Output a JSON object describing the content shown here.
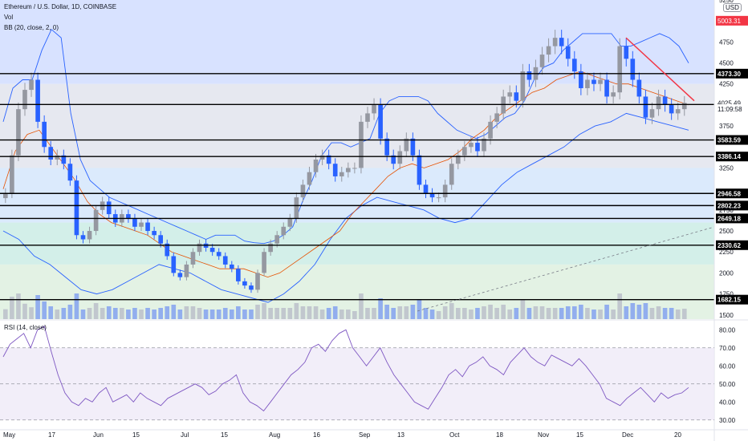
{
  "legend": {
    "title": "Ethereum / U.S. Dollar, 1D, COINBASE",
    "vol": "Vol",
    "bb": "BB (20, close, 2, 0)",
    "rsi": "RSI (14, close)"
  },
  "currency": "USD",
  "colors": {
    "up": "#9598a1",
    "down": "#2962ff",
    "bb_band": "#2962ff",
    "bb_basis": "#e65100",
    "rsi_line": "#7e57c2",
    "trendline": "#f23645",
    "level": "#000000"
  },
  "chart_data": [
    {
      "type": "candlestick",
      "title": "Ethereum / U.S. Dollar, 1D, COINBASE",
      "ylim": [
        1450,
        5250
      ],
      "y_ticks": [
        1500,
        1750,
        2000,
        2250,
        2500,
        2750,
        3250,
        3750,
        4000,
        4250,
        4500,
        4750,
        5250
      ],
      "x_ticks": [
        "May",
        "17",
        "Jun",
        "15",
        "Jul",
        "15",
        "Aug",
        "16",
        "Sep",
        "13",
        "Oct",
        "18",
        "Nov",
        "15",
        "Dec",
        "20"
      ],
      "horizontal_levels": [
        4373.3,
        4005.7,
        3583.59,
        3386.14,
        2946.58,
        2802.23,
        2649.18,
        2330.62,
        1682.15
      ],
      "price_labels": [
        {
          "text": "5003.31",
          "value": 5003.31,
          "style": "highlight"
        },
        {
          "text": "4025.49",
          "value": 4025.49,
          "style": "current"
        },
        {
          "text": "11:09:58",
          "value": 3950,
          "style": "countdown"
        }
      ],
      "zones": [
        {
          "from": 4250,
          "to": 5250,
          "color": "#d8e2ff"
        },
        {
          "from": 3250,
          "to": 4250,
          "color": "#e6e8f0"
        },
        {
          "from": 2600,
          "to": 3250,
          "color": "#dbeafc"
        },
        {
          "from": 2100,
          "to": 2600,
          "color": "#d3efe9"
        },
        {
          "from": 1450,
          "to": 2100,
          "color": "#e3f2e4"
        }
      ],
      "series": [
        {
          "name": "ETH close",
          "values": [
            2950,
            3400,
            3950,
            4180,
            4300,
            3800,
            3500,
            3350,
            3400,
            3300,
            3100,
            2450,
            2400,
            2500,
            2750,
            2850,
            2700,
            2600,
            2700,
            2650,
            2550,
            2600,
            2500,
            2450,
            2350,
            2200,
            2000,
            1950,
            2100,
            2250,
            2350,
            2300,
            2250,
            2200,
            2100,
            2050,
            1900,
            1850,
            1800,
            2000,
            2250,
            2350,
            2450,
            2550,
            2650,
            2900,
            3050,
            3200,
            3350,
            3400,
            3300,
            3150,
            3200,
            3250,
            3250,
            3800,
            3900,
            4000,
            3600,
            3400,
            3300,
            3450,
            3600,
            3400,
            3050,
            2950,
            2900,
            2900,
            3050,
            3300,
            3400,
            3500,
            3550,
            3450,
            3600,
            3800,
            3900,
            4100,
            4150,
            4050,
            4400,
            4300,
            4450,
            4600,
            4700,
            4800,
            4700,
            4550,
            4400,
            4200,
            4300,
            4250,
            4300,
            4100,
            4150,
            4700,
            4550,
            4300,
            4100,
            3850,
            3950,
            4100,
            4000,
            3900,
            3950,
            4025
          ]
        },
        {
          "name": "BB upper",
          "values": [
            3800,
            4200,
            4300,
            4300,
            4650,
            4900,
            4800,
            3900,
            3350,
            3100,
            3000,
            2900,
            2850,
            2800,
            2750,
            2700,
            2650,
            2600,
            2550,
            2500,
            2450,
            2400,
            2450,
            2450,
            2450,
            2380,
            2360,
            2350,
            2380,
            2450,
            2550,
            2850,
            3100,
            3400,
            3550,
            3550,
            3500,
            3550,
            3600,
            3900,
            4050,
            4100,
            4100,
            4100,
            4050,
            3900,
            3800,
            3700,
            3650,
            3600,
            3650,
            3750,
            3850,
            3900,
            4050,
            4300,
            4450,
            4500,
            4650,
            4750,
            4850,
            4850,
            4850,
            4850,
            4700,
            4700,
            4750,
            4800,
            4850,
            4800,
            4700,
            4500
          ]
        },
        {
          "name": "BB basis",
          "values": [
            3000,
            3450,
            3650,
            3700,
            3500,
            3300,
            3100,
            2850,
            2700,
            2600,
            2550,
            2500,
            2450,
            2350,
            2250,
            2200,
            2150,
            2100,
            2050,
            2050,
            2050,
            2000,
            1950,
            2000,
            2100,
            2200,
            2300,
            2400,
            2500,
            2700,
            2850,
            3000,
            3150,
            3250,
            3300,
            3250,
            3300,
            3350,
            3450,
            3600,
            3700,
            3850,
            3950,
            4050,
            4150,
            4200,
            4300,
            4350,
            4400,
            4350,
            4300,
            4250,
            4250,
            4200,
            4150,
            4100,
            4050,
            4000
          ]
        },
        {
          "name": "BB lower",
          "values": [
            2500,
            2400,
            2200,
            2100,
            1950,
            1800,
            1750,
            1800,
            1900,
            2000,
            2100,
            2050,
            2000,
            1900,
            1800,
            1750,
            1700,
            1650,
            1750,
            1900,
            2100,
            2400,
            2650,
            2800,
            2900,
            2850,
            2800,
            2750,
            2650,
            2600,
            2650,
            2850,
            3050,
            3200,
            3300,
            3400,
            3500,
            3650,
            3750,
            3800,
            3900,
            3850,
            3800,
            3750,
            3700
          ]
        }
      ]
    },
    {
      "type": "line",
      "title": "RSI (14, close)",
      "ylim": [
        25,
        85
      ],
      "y_ticks": [
        30.0,
        40.0,
        50.0,
        60.0,
        70.0,
        80.0
      ],
      "bands": [
        30,
        50,
        70
      ],
      "series": [
        {
          "name": "RSI",
          "values": [
            65,
            72,
            75,
            78,
            70,
            80,
            82,
            68,
            55,
            45,
            40,
            38,
            42,
            40,
            45,
            48,
            40,
            42,
            44,
            40,
            45,
            42,
            40,
            38,
            42,
            44,
            46,
            48,
            50,
            48,
            44,
            46,
            50,
            52,
            55,
            45,
            40,
            38,
            35,
            40,
            45,
            50,
            55,
            58,
            62,
            70,
            72,
            68,
            74,
            78,
            80,
            70,
            65,
            60,
            65,
            70,
            62,
            55,
            50,
            45,
            40,
            38,
            36,
            42,
            48,
            55,
            58,
            54,
            60,
            62,
            65,
            60,
            58,
            55,
            62,
            66,
            70,
            65,
            62,
            60,
            66,
            64,
            62,
            60,
            64,
            60,
            55,
            50,
            42,
            40,
            38,
            42,
            45,
            48,
            44,
            40,
            45,
            42,
            44,
            45,
            48
          ]
        }
      ]
    }
  ]
}
